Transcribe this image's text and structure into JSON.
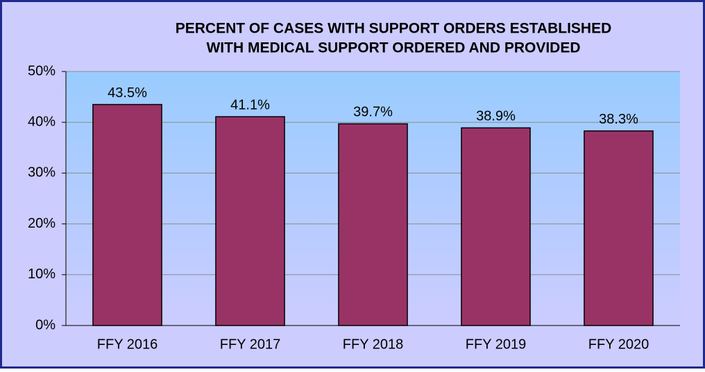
{
  "chart_data": {
    "type": "bar",
    "title": [
      "PERCENT OF CASES WITH SUPPORT ORDERS ESTABLISHED",
      "WITH MEDICAL SUPPORT ORDERED AND PROVIDED"
    ],
    "categories": [
      "FFY 2016",
      "FFY 2017",
      "FFY 2018",
      "FFY 2019",
      "FFY 2020"
    ],
    "values": [
      43.5,
      41.1,
      39.7,
      38.9,
      38.3
    ],
    "value_labels": [
      "43.5%",
      "41.1%",
      "39.7%",
      "38.9%",
      "38.3%"
    ],
    "color": "#993366",
    "ylim": [
      0,
      50
    ],
    "yticks": [
      {
        "value": 0,
        "label": "0%"
      },
      {
        "value": 10,
        "label": "10%"
      },
      {
        "value": 20,
        "label": "20%"
      },
      {
        "value": 30,
        "label": "30%"
      },
      {
        "value": 40,
        "label": "40%"
      },
      {
        "value": 50,
        "label": "50%"
      }
    ],
    "grid": true
  }
}
